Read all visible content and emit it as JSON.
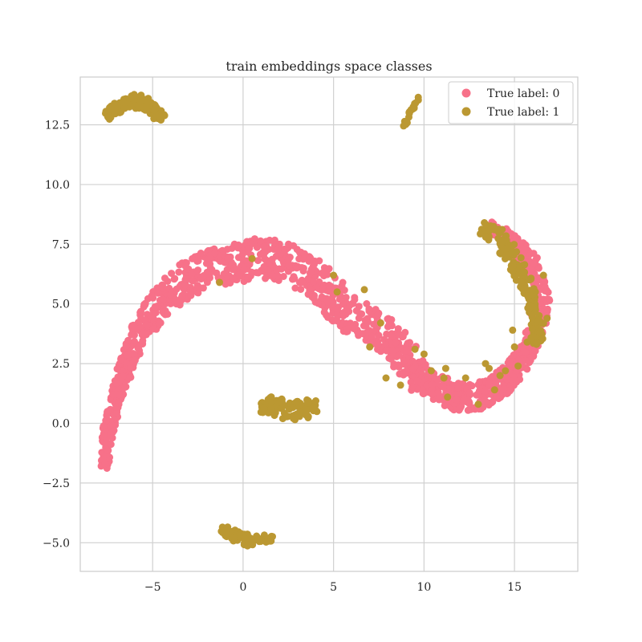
{
  "chart_data": {
    "type": "scatter",
    "title": "train embeddings space classes",
    "xlabel": "",
    "ylabel": "",
    "xlim": [
      -9.0,
      18.5
    ],
    "ylim": [
      -6.2,
      14.5
    ],
    "xticks": [
      -5,
      0,
      5,
      10,
      15
    ],
    "xtick_labels": [
      "−5",
      "0",
      "5",
      "10",
      "15"
    ],
    "yticks": [
      -5.0,
      -2.5,
      0.0,
      2.5,
      5.0,
      7.5,
      10.0,
      12.5
    ],
    "ytick_labels": [
      "−5.0",
      "−2.5",
      "0.0",
      "2.5",
      "5.0",
      "7.5",
      "10.0",
      "12.5"
    ],
    "grid": true,
    "legend": {
      "placement": "top-right"
    },
    "series": [
      {
        "name": "True label: 0",
        "color": "#f77189",
        "clusters": [
          {
            "kind": "arc",
            "path": [
              [
                -7.7,
                -1.8
              ],
              [
                -7.5,
                -0.5
              ],
              [
                -7.2,
                0.5
              ],
              [
                -6.8,
                1.6
              ],
              [
                -6.3,
                2.8
              ],
              [
                -5.6,
                4.0
              ],
              [
                -4.6,
                5.0
              ],
              [
                -3.3,
                5.9
              ],
              [
                -2.0,
                6.5
              ],
              [
                -1.0,
                6.6
              ],
              [
                0.2,
                6.9
              ],
              [
                1.5,
                6.9
              ],
              [
                2.8,
                6.6
              ],
              [
                4.0,
                6.0
              ],
              [
                5.2,
                5.0
              ],
              [
                6.4,
                4.3
              ],
              [
                7.6,
                3.9
              ],
              [
                8.6,
                3.2
              ],
              [
                9.5,
                2.1
              ],
              [
                10.3,
                1.6
              ],
              [
                11.3,
                1.3
              ],
              [
                12.3,
                1.0
              ],
              [
                13.2,
                1.2
              ],
              [
                14.2,
                1.6
              ],
              [
                15.1,
                2.3
              ],
              [
                15.8,
                3.1
              ],
              [
                16.3,
                4.2
              ],
              [
                16.5,
                5.3
              ],
              [
                16.2,
                6.2
              ],
              [
                15.5,
                7.1
              ],
              [
                14.6,
                7.8
              ],
              [
                13.6,
                8.2
              ]
            ],
            "width": [
              0.25,
              0.3,
              0.3,
              0.35,
              0.45,
              0.55,
              0.7,
              0.75,
              0.75,
              0.75,
              0.9,
              0.9,
              0.85,
              0.8,
              0.8,
              0.75,
              0.7,
              0.7,
              0.65,
              0.6,
              0.55,
              0.55,
              0.55,
              0.55,
              0.5,
              0.45,
              0.45,
              0.45,
              0.4,
              0.4,
              0.35,
              0.3
            ],
            "count": 1500
          }
        ]
      },
      {
        "name": "True label: 1",
        "color": "#bb9832",
        "clusters": [
          {
            "kind": "arc",
            "path": [
              [
                -7.5,
                12.9
              ],
              [
                -7.0,
                13.2
              ],
              [
                -6.2,
                13.5
              ],
              [
                -5.4,
                13.4
              ],
              [
                -4.8,
                13.1
              ],
              [
                -4.5,
                12.7
              ]
            ],
            "width": [
              0.2,
              0.25,
              0.25,
              0.25,
              0.25,
              0.2
            ],
            "count": 160
          },
          {
            "kind": "arc",
            "path": [
              [
                8.9,
                12.4
              ],
              [
                9.2,
                13.0
              ],
              [
                9.7,
                13.6
              ]
            ],
            "width": [
              0.06,
              0.06,
              0.06
            ],
            "count": 22
          },
          {
            "kind": "arc",
            "path": [
              [
                1.0,
                0.8
              ],
              [
                2.0,
                0.7
              ],
              [
                3.0,
                0.5
              ],
              [
                4.0,
                0.7
              ]
            ],
            "width": [
              0.35,
              0.45,
              0.45,
              0.35
            ],
            "count": 110
          },
          {
            "kind": "arc",
            "path": [
              [
                -1.2,
                -4.5
              ],
              [
                -0.4,
                -4.7
              ],
              [
                0.4,
                -4.95
              ],
              [
                1.6,
                -4.8
              ]
            ],
            "width": [
              0.15,
              0.2,
              0.2,
              0.1
            ],
            "count": 90
          },
          {
            "kind": "arc",
            "path": [
              [
                13.2,
                8.2
              ],
              [
                14.2,
                7.7
              ],
              [
                15.0,
                6.8
              ],
              [
                15.6,
                5.9
              ],
              [
                16.0,
                5.0
              ],
              [
                16.3,
                4.0
              ],
              [
                16.2,
                3.2
              ]
            ],
            "width": [
              0.35,
              0.35,
              0.35,
              0.3,
              0.3,
              0.3,
              0.3
            ],
            "count": 150
          },
          {
            "kind": "scatter",
            "points": [
              [
                -1.3,
                5.9
              ],
              [
                0.5,
                6.9
              ],
              [
                5.0,
                6.2
              ],
              [
                5.2,
                5.5
              ],
              [
                6.7,
                5.6
              ],
              [
                7.0,
                3.2
              ],
              [
                7.6,
                4.2
              ],
              [
                7.9,
                1.9
              ],
              [
                8.7,
                1.6
              ],
              [
                9.5,
                3.1
              ],
              [
                10.0,
                2.9
              ],
              [
                10.4,
                2.2
              ],
              [
                11.1,
                1.9
              ],
              [
                11.2,
                2.3
              ],
              [
                11.3,
                1.1
              ],
              [
                12.3,
                1.9
              ],
              [
                13.0,
                0.8
              ],
              [
                13.4,
                2.5
              ],
              [
                13.6,
                2.3
              ],
              [
                13.9,
                1.4
              ],
              [
                14.2,
                2.0
              ],
              [
                14.5,
                2.2
              ],
              [
                14.9,
                3.9
              ],
              [
                15.0,
                3.2
              ],
              [
                15.2,
                2.4
              ],
              [
                15.7,
                3.4
              ],
              [
                16.0,
                5.6
              ],
              [
                16.4,
                3.8
              ],
              [
                16.6,
                6.2
              ],
              [
                16.8,
                4.4
              ]
            ]
          }
        ]
      }
    ]
  }
}
